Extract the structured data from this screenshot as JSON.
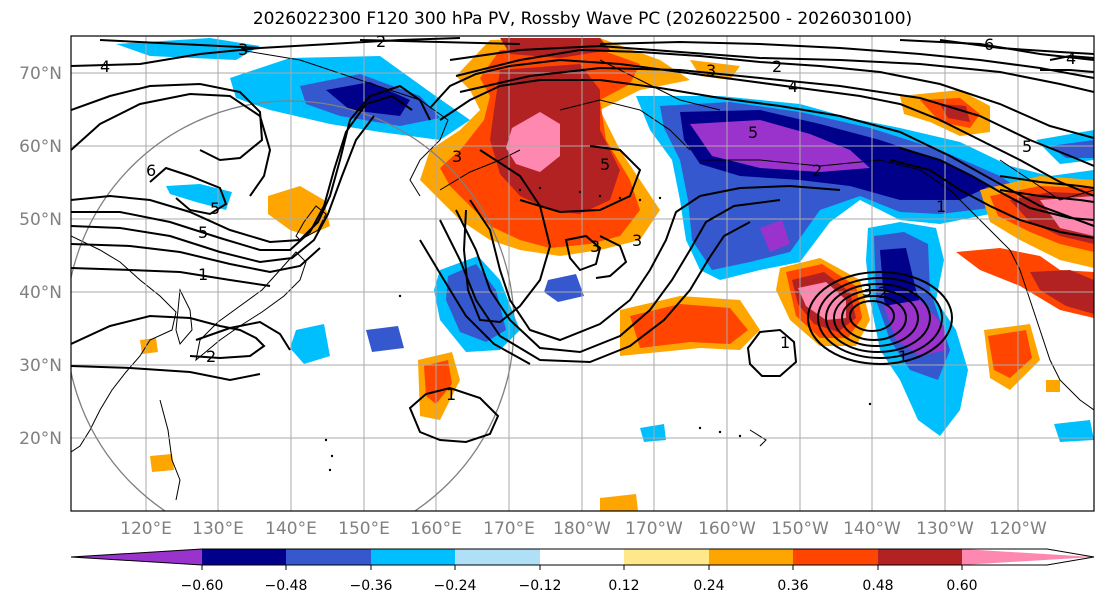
{
  "title": "2026022300 F120 300 hPa PV, Rossby Wave PC (2026022500 - 2026030100)",
  "map": {
    "lat_labels": [
      "70°N",
      "60°N",
      "50°N",
      "40°N",
      "30°N",
      "20°N"
    ],
    "lon_labels": [
      "120°E",
      "130°E",
      "140°E",
      "150°E",
      "160°E",
      "170°E",
      "180°W",
      "170°W",
      "160°W",
      "150°W",
      "140°W",
      "130°W",
      "120°W"
    ],
    "contour_labels": [
      "4",
      "3",
      "2",
      "3",
      "2",
      "4",
      "6",
      "4",
      "5",
      "5",
      "5",
      "5",
      "1",
      "6",
      "5",
      "1",
      "2",
      "3",
      "2",
      "3",
      "1",
      "1",
      "3",
      "2",
      "1",
      "3"
    ]
  },
  "colorbar": {
    "tick_labels": [
      "−0.60",
      "−0.48",
      "−0.36",
      "−0.24",
      "−0.12",
      "0.12",
      "0.24",
      "0.36",
      "0.48",
      "0.60"
    ],
    "colors": [
      "#9933cc",
      "#00008b",
      "#3558cf",
      "#00bfff",
      "#b0e0f8",
      "#ffffff",
      "#ffe88a",
      "#ffa500",
      "#ff4500",
      "#b22222",
      "#ff88b0"
    ]
  }
}
